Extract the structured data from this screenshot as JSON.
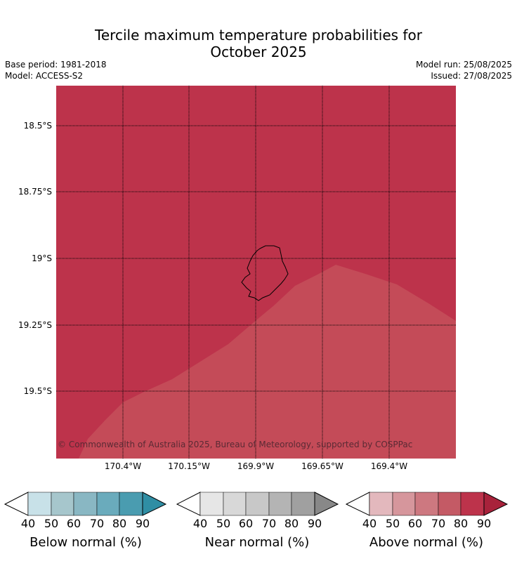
{
  "title_line1": "Tercile maximum temperature probabilities for",
  "title_line2": "October 2025",
  "meta": {
    "base_period": "Base period: 1981-2018",
    "model": "Model: ACCESS-S2",
    "model_run": "Model run: 25/08/2025",
    "issued": "Issued: 27/08/2025"
  },
  "map": {
    "lat_labels": [
      "18.5°S",
      "18.75°S",
      "19°S",
      "19.25°S",
      "19.5°S"
    ],
    "lon_labels": [
      "170.4°W",
      "170.15°W",
      "169.9°W",
      "169.65°W",
      "169.4°W"
    ],
    "copyright": "© Commonwealth of Australia 2025, Bureau of Meteorology, supported by COSPPac",
    "colors": {
      "above_80_90": "#bd334b",
      "above_70_80": "#c44b58"
    }
  },
  "colorbars": [
    {
      "title": "Below normal (%)",
      "ticks": [
        "40",
        "50",
        "60",
        "70",
        "80",
        "90"
      ],
      "colors": [
        "#c8e1e8",
        "#a6c6cc",
        "#89b7c3",
        "#6aabbc",
        "#4a9cb0",
        "#2f8ea4"
      ]
    },
    {
      "title": "Near normal (%)",
      "ticks": [
        "40",
        "50",
        "60",
        "70",
        "80",
        "90"
      ],
      "colors": [
        "#e6e6e6",
        "#d8d8d8",
        "#c8c8c8",
        "#b4b4b4",
        "#a0a0a0",
        "#888888"
      ]
    },
    {
      "title": "Above normal (%)",
      "ticks": [
        "40",
        "50",
        "60",
        "70",
        "80",
        "90"
      ],
      "colors": [
        "#e3b8bd",
        "#d6969c",
        "#cd7880",
        "#c45a65",
        "#bd334b",
        "#a8223b"
      ]
    }
  ]
}
